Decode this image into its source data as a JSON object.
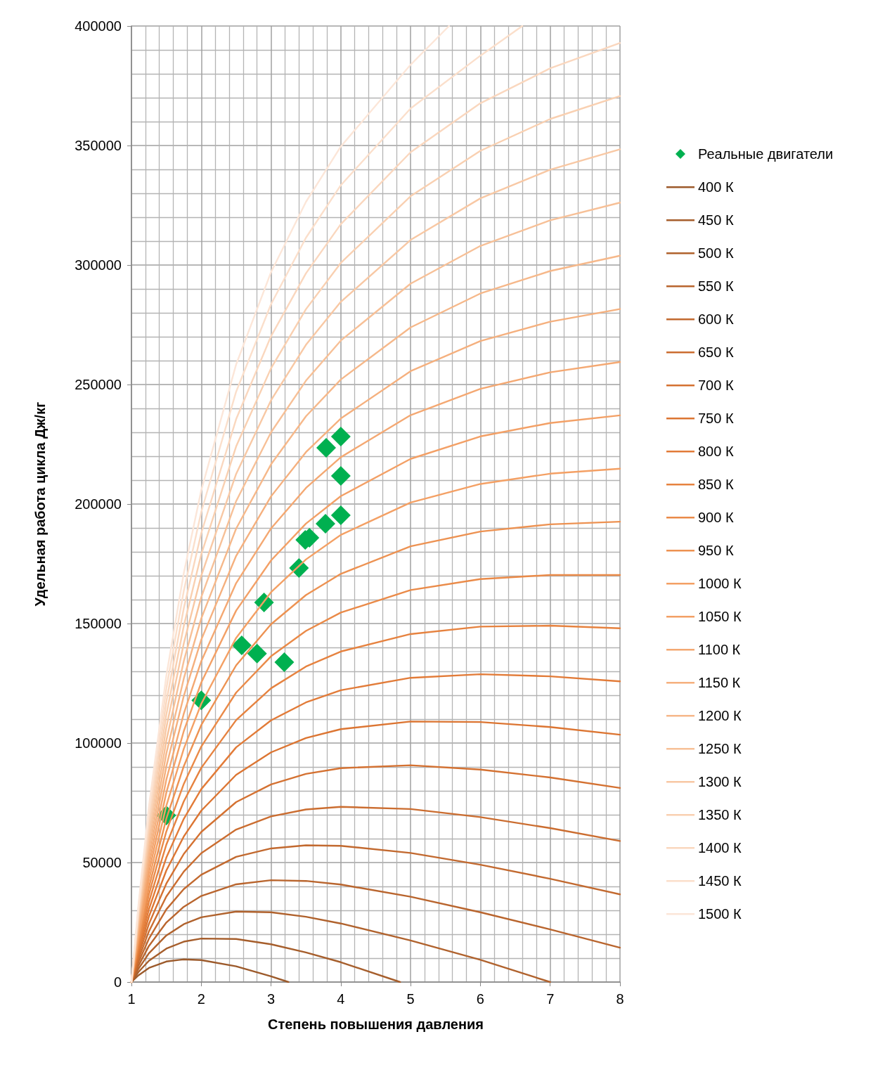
{
  "chart_data": {
    "type": "line",
    "xlabel": "Степень повышения давления",
    "ylabel": "Удельная работа цикла Дж/кг",
    "xlim": [
      1,
      8
    ],
    "xticks": [
      1,
      2,
      3,
      4,
      5,
      6,
      7,
      8
    ],
    "ylim": [
      0,
      400000
    ],
    "yticks": [
      0,
      50000,
      100000,
      150000,
      200000,
      250000,
      300000,
      350000,
      400000
    ],
    "grid": true,
    "legend": "right",
    "series": [
      {
        "type": "scatter",
        "name": "Реальные двигатели",
        "color": "#00b050",
        "marker": "diamond",
        "x": [
          1.5,
          2,
          2.58,
          2.8,
          2.9,
          3.19,
          3.4,
          3.49,
          3.55,
          3.78,
          4,
          4,
          3.79,
          4
        ],
        "values": [
          69700,
          117900,
          140900,
          137400,
          158800,
          133800,
          173200,
          185000,
          185900,
          191800,
          195300,
          211800,
          223500,
          228200
        ]
      },
      {
        "name": "400 К",
        "color": "#9c5a2b",
        "x": [
          1,
          1.1,
          1.25,
          1.5,
          1.75,
          2,
          2.5,
          3,
          3.25
        ],
        "values": [
          0,
          2800,
          5900,
          8600,
          9500,
          9200,
          6600,
          2400,
          0
        ]
      },
      {
        "name": "450 К",
        "color": "#a65e2c",
        "x": [
          1,
          1.1,
          1.25,
          1.5,
          1.75,
          2,
          2.5,
          3,
          3.5,
          4,
          4.85
        ],
        "values": [
          0,
          4200,
          8900,
          14000,
          16900,
          18200,
          18000,
          15800,
          12400,
          8300,
          0
        ]
      },
      {
        "name": "500 К",
        "color": "#b0622d",
        "x": [
          1,
          1.1,
          1.25,
          1.5,
          1.75,
          2,
          2.5,
          3,
          3.5,
          4,
          5,
          6,
          7
        ],
        "values": [
          0,
          5500,
          12000,
          19500,
          24200,
          27100,
          29500,
          29200,
          27300,
          24500,
          17400,
          9300,
          0
        ]
      },
      {
        "name": "550 К",
        "color": "#b9652e",
        "x": [
          1,
          1.1,
          1.25,
          1.5,
          1.75,
          2,
          2.5,
          3,
          3.5,
          4,
          5,
          6,
          7,
          8
        ],
        "values": [
          0,
          6800,
          15100,
          24900,
          31500,
          36000,
          40900,
          42600,
          42300,
          40800,
          35700,
          29200,
          22000,
          14400
        ]
      },
      {
        "name": "600 К",
        "color": "#c2692f",
        "x": [
          1,
          1.1,
          1.25,
          1.5,
          1.75,
          2,
          2.5,
          3,
          3.5,
          4,
          5,
          6,
          7,
          8
        ],
        "values": [
          0,
          8200,
          18100,
          30400,
          38900,
          44900,
          52400,
          55900,
          57200,
          57000,
          54000,
          49100,
          43200,
          36700
        ]
      },
      {
        "name": "650 К",
        "color": "#cb6d30",
        "x": [
          1,
          1.1,
          1.25,
          1.5,
          1.75,
          2,
          2.5,
          3,
          3.5,
          4,
          5,
          6,
          7,
          8
        ],
        "values": [
          0,
          9500,
          21200,
          35800,
          46200,
          53900,
          63800,
          69300,
          72200,
          73300,
          72400,
          69000,
          64400,
          59000
        ]
      },
      {
        "name": "700 К",
        "color": "#d47131",
        "x": [
          1,
          1.1,
          1.25,
          1.5,
          1.75,
          2,
          2.5,
          3,
          3.5,
          4,
          5,
          6,
          7,
          8
        ],
        "values": [
          0,
          10900,
          24300,
          41200,
          53600,
          62800,
          75300,
          82700,
          87100,
          89500,
          90700,
          88900,
          85600,
          81200
        ]
      },
      {
        "name": "750 К",
        "color": "#dc7532",
        "x": [
          1,
          1.1,
          1.25,
          1.5,
          1.75,
          2,
          2.5,
          3,
          3.5,
          4,
          5,
          6,
          7,
          8
        ],
        "values": [
          0,
          12200,
          27400,
          46700,
          60900,
          71700,
          86700,
          96100,
          102100,
          105800,
          109000,
          108800,
          106700,
          103500
        ]
      },
      {
        "name": "800 К",
        "color": "#e27b38",
        "x": [
          1,
          1.1,
          1.25,
          1.5,
          1.75,
          2,
          2.5,
          3,
          3.5,
          4,
          5,
          6,
          7,
          8
        ],
        "values": [
          0,
          13500,
          30400,
          52100,
          68300,
          80700,
          98200,
          109500,
          117000,
          122100,
          127300,
          128800,
          127900,
          125800
        ]
      },
      {
        "name": "850 К",
        "color": "#e6823f",
        "x": [
          1,
          1.1,
          1.25,
          1.5,
          1.75,
          2,
          2.5,
          3,
          3.5,
          4,
          5,
          6,
          7,
          8
        ],
        "values": [
          0,
          14900,
          33500,
          57500,
          75600,
          89600,
          109600,
          122900,
          132000,
          138300,
          145600,
          148700,
          149100,
          148000
        ]
      },
      {
        "name": "900 К",
        "color": "#ea8a48",
        "x": [
          1,
          1.1,
          1.25,
          1.5,
          1.75,
          2,
          2.5,
          3,
          3.5,
          4,
          5,
          6,
          7,
          8
        ],
        "values": [
          0,
          16200,
          36600,
          63000,
          82900,
          98500,
          121100,
          136300,
          146900,
          154600,
          164000,
          168600,
          170300,
          170300
        ]
      },
      {
        "name": "950 К",
        "color": "#ed9252",
        "x": [
          1,
          1.1,
          1.25,
          1.5,
          1.75,
          2,
          2.5,
          3,
          3.5,
          4,
          5,
          6,
          7,
          8
        ],
        "values": [
          0,
          17500,
          39600,
          68400,
          90300,
          107500,
          132500,
          149700,
          161900,
          170800,
          182300,
          188500,
          191500,
          192600
        ]
      },
      {
        "name": "1000 К",
        "color": "#f4a064",
        "x": [
          1,
          1.1,
          1.25,
          1.5,
          1.75,
          2,
          2.5,
          3,
          3.5,
          4,
          5,
          6,
          7,
          8
        ],
        "values": [
          0,
          18900,
          42700,
          73800,
          97600,
          116400,
          144000,
          163100,
          176800,
          187100,
          200600,
          208400,
          212700,
          214800
        ]
      },
      {
        "name": "1050 К",
        "color": "#f3a066",
        "x": [
          1,
          1.1,
          1.25,
          1.5,
          1.75,
          2,
          2.5,
          3,
          3.5,
          4,
          5,
          6,
          7,
          8
        ],
        "values": [
          0,
          20200,
          45800,
          79300,
          105000,
          125300,
          155400,
          176400,
          191800,
          203300,
          218900,
          228300,
          233900,
          237100
        ]
      },
      {
        "name": "1100 К",
        "color": "#f4a872",
        "x": [
          1,
          1.1,
          1.25,
          1.5,
          1.75,
          2,
          2.5,
          3,
          3.5,
          4,
          5,
          6,
          7,
          8
        ],
        "values": [
          0,
          21500,
          48800,
          84700,
          112300,
          134200,
          166900,
          189800,
          206700,
          219600,
          237200,
          248200,
          255100,
          259400
        ]
      },
      {
        "name": "1150 К",
        "color": "#f5b07e",
        "x": [
          1,
          1.1,
          1.25,
          1.5,
          1.75,
          2,
          2.5,
          3,
          3.5,
          4,
          5,
          6,
          7,
          8
        ],
        "values": [
          0,
          22900,
          51900,
          90200,
          119700,
          143200,
          178300,
          203200,
          221700,
          235800,
          255600,
          268200,
          276300,
          281600
        ]
      },
      {
        "name": "1200 К",
        "color": "#f6b88a",
        "x": [
          1,
          1.1,
          1.25,
          1.5,
          1.75,
          2,
          2.5,
          3,
          3.5,
          4,
          5,
          6,
          7,
          8
        ],
        "values": [
          0,
          24200,
          55000,
          95600,
          127000,
          152100,
          189700,
          216600,
          236700,
          252100,
          273900,
          288100,
          297500,
          303900
        ]
      },
      {
        "name": "1250 К",
        "color": "#f7c097",
        "x": [
          1,
          1.1,
          1.25,
          1.5,
          1.75,
          2,
          2.5,
          3,
          3.5,
          4,
          5,
          6,
          7,
          8
        ],
        "values": [
          0,
          25500,
          58100,
          101000,
          134300,
          161000,
          201200,
          230000,
          251600,
          268400,
          292200,
          308000,
          318700,
          326100
        ]
      },
      {
        "name": "1300 К",
        "color": "#f8c8a4",
        "x": [
          1,
          1.1,
          1.25,
          1.5,
          1.75,
          2,
          2.5,
          3,
          3.5,
          4,
          5,
          6,
          7,
          8
        ],
        "values": [
          0,
          26900,
          61100,
          106500,
          141700,
          170000,
          212600,
          243400,
          266600,
          284600,
          310500,
          327900,
          339900,
          348400
        ]
      },
      {
        "name": "1350 К",
        "color": "#f9d0b1",
        "x": [
          1,
          1.1,
          1.25,
          1.5,
          1.75,
          2,
          2.5,
          3,
          3.5,
          4,
          5,
          6,
          7,
          8
        ],
        "values": [
          0,
          28200,
          64200,
          111900,
          149000,
          178900,
          224100,
          256800,
          281500,
          300900,
          328800,
          347800,
          361100,
          370700
        ]
      },
      {
        "name": "1400 К",
        "color": "#fad7be",
        "x": [
          1,
          1.1,
          1.25,
          1.5,
          1.75,
          2,
          2.5,
          3,
          3.5,
          4,
          5,
          6,
          7,
          8
        ],
        "values": [
          0,
          29500,
          67300,
          117300,
          156400,
          187800,
          235500,
          270200,
          296500,
          317100,
          347200,
          367700,
          382300,
          392900
        ]
      },
      {
        "name": "1450 К",
        "color": "#fbdfcb",
        "x": [
          1,
          1.1,
          1.25,
          1.5,
          1.75,
          2,
          2.5,
          3,
          3.5,
          4,
          5,
          6,
          6.6
        ],
        "values": [
          0,
          30900,
          70300,
          122800,
          163700,
          196700,
          247000,
          283600,
          311400,
          333400,
          365500,
          387600,
          400000
        ]
      },
      {
        "name": "1500 К",
        "color": "#fce6d8",
        "x": [
          1,
          1.1,
          1.25,
          1.5,
          1.75,
          2,
          2.5,
          3,
          3.5,
          4,
          5,
          5.55
        ],
        "values": [
          0,
          32200,
          73400,
          128200,
          171100,
          205700,
          258400,
          297000,
          326400,
          349600,
          383800,
          400000
        ]
      }
    ]
  }
}
